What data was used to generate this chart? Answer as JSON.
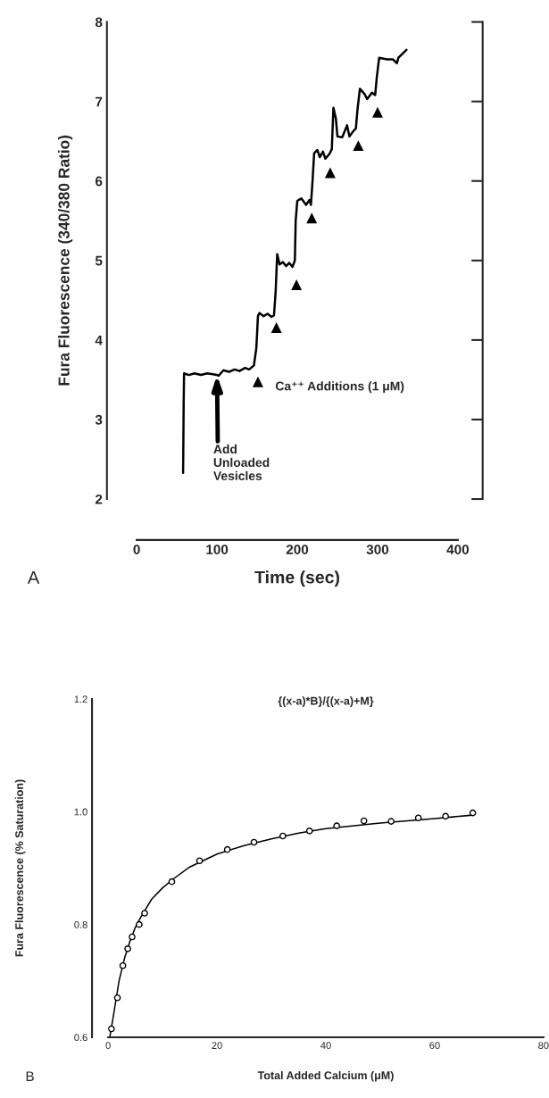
{
  "chart_data": [
    {
      "type": "line",
      "xlabel": "Time (sec)",
      "ylabel": "Fura Fluorescence (340/380 Ratio)",
      "xlim": [
        0,
        400
      ],
      "xticks": [
        0,
        100,
        200,
        300,
        400
      ],
      "ylim": [
        2,
        8
      ],
      "yticks": [
        2,
        3,
        4,
        5,
        6,
        7,
        8
      ],
      "grid": false,
      "series": [
        {
          "color": "#000000",
          "x": [
            57.8,
            58.5,
            59,
            65,
            72,
            80,
            88,
            95,
            100,
            102,
            108,
            115,
            122,
            128,
            135,
            140,
            146,
            149,
            151,
            153,
            158,
            163,
            168,
            171,
            173,
            175,
            178,
            182,
            186,
            190,
            194,
            197,
            198,
            200,
            205,
            211,
            215,
            217,
            219,
            221,
            225,
            228,
            232,
            235,
            240,
            243,
            245,
            248,
            250,
            256,
            262,
            265,
            270,
            273,
            275,
            278,
            284,
            287,
            293,
            297,
            299,
            302,
            312,
            319,
            324,
            326,
            336
          ],
          "values": [
            2.33,
            3.2,
            3.58,
            3.56,
            3.58,
            3.56,
            3.58,
            3.57,
            3.56,
            3.55,
            3.62,
            3.6,
            3.63,
            3.61,
            3.65,
            3.63,
            3.68,
            3.9,
            4.3,
            4.34,
            4.3,
            4.33,
            4.29,
            4.31,
            4.6,
            5.08,
            4.95,
            4.98,
            4.93,
            4.97,
            4.92,
            5.0,
            5.5,
            5.75,
            5.78,
            5.7,
            5.76,
            5.7,
            6.0,
            6.35,
            6.39,
            6.3,
            6.37,
            6.28,
            6.34,
            6.4,
            6.92,
            6.79,
            6.56,
            6.55,
            6.7,
            6.56,
            6.63,
            6.66,
            6.9,
            7.16,
            7.09,
            7.03,
            7.11,
            7.08,
            7.3,
            7.55,
            7.53,
            7.53,
            7.48,
            7.55,
            7.65
          ]
        },
        {
          "type": "scatter",
          "marker": "triangle",
          "color": "#000000",
          "x": [
            151,
            174,
            199,
            218,
            241,
            276,
            300
          ],
          "values": [
            3.47,
            4.15,
            4.69,
            5.53,
            6.1,
            6.44,
            6.86
          ]
        }
      ],
      "annotations": [
        "A",
        {
          "text": "Add\nUnloaded\nVesicles",
          "x": 100,
          "y": 3.56
        },
        {
          "text": "Ca⁺⁺ Additions (1 μM)",
          "x": 151,
          "y": 3.47
        }
      ]
    },
    {
      "type": "scatter",
      "title": "{(x-a)*B}/{(x-a)+M}",
      "xlabel": "Total Added Calcium (μM)",
      "ylabel": "Fura Fluorescence (% Saturation)",
      "xlim": [
        0,
        80
      ],
      "xticks": [
        0,
        20,
        40,
        60,
        80
      ],
      "ylim": [
        0.6,
        1.2
      ],
      "yticks": [
        0.6,
        0.8,
        {
          "value": 1.0,
          "label": "1.0"
        },
        1.2
      ],
      "grid": false,
      "series": [
        {
          "type": "line",
          "color": "#000000",
          "x": [
            0.3,
            1,
            2,
            3,
            4,
            5,
            6,
            8,
            10,
            12,
            15,
            20,
            25,
            30,
            35,
            40,
            50,
            60,
            67
          ],
          "values": [
            0.6,
            0.64,
            0.7,
            0.74,
            0.77,
            0.795,
            0.813,
            0.845,
            0.865,
            0.881,
            0.902,
            0.925,
            0.94,
            0.952,
            0.962,
            0.97,
            0.98,
            0.988,
            0.994
          ]
        },
        {
          "marker": "circle",
          "color": "#000000",
          "x": [
            0.6,
            1.7,
            2.7,
            3.6,
            4.4,
            5.7,
            6.7,
            11.7,
            16.8,
            21.9,
            26.8,
            32.1,
            37,
            42,
            47,
            52,
            57,
            62,
            67
          ],
          "values": [
            0.615,
            0.67,
            0.727,
            0.757,
            0.778,
            0.8,
            0.82,
            0.876,
            0.913,
            0.933,
            0.946,
            0.957,
            0.966,
            0.975,
            0.984,
            0.983,
            0.989,
            0.992,
            0.998
          ]
        }
      ],
      "annotations": [
        "B"
      ]
    }
  ]
}
